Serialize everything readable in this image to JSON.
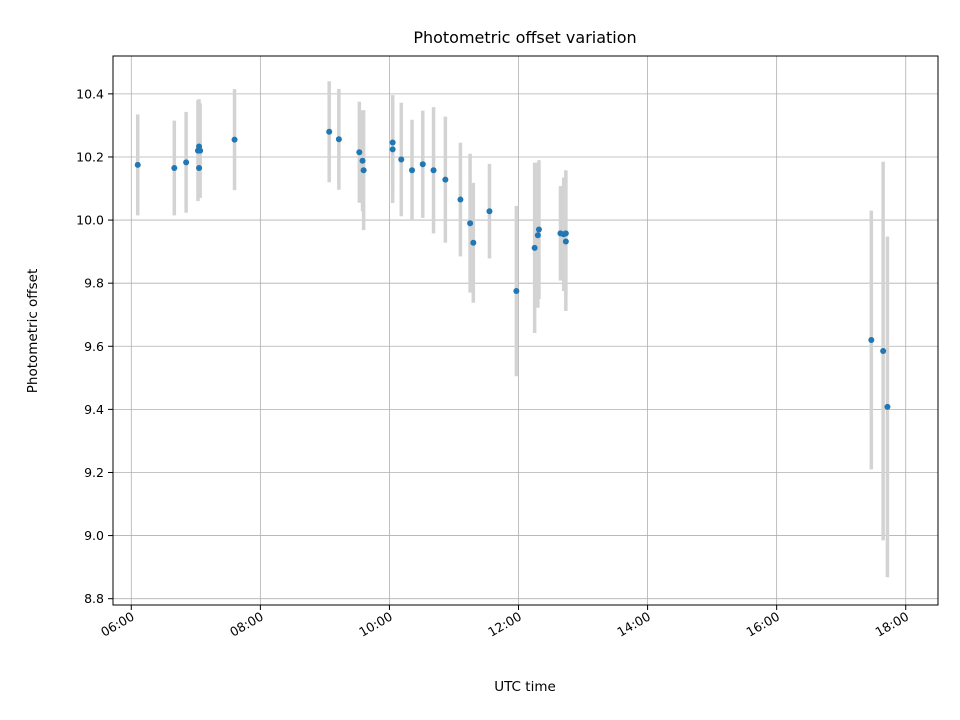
{
  "chart_data": {
    "type": "scatter",
    "title": "Photometric offset variation",
    "xlabel": "UTC time",
    "ylabel": "Photometric offset",
    "x_axis_type": "time-of-day",
    "xlim": [
      "05:43",
      "18:30"
    ],
    "ylim": [
      8.78,
      10.52
    ],
    "x_ticks": [
      "06:00",
      "08:00",
      "10:00",
      "12:00",
      "14:00",
      "16:00",
      "18:00"
    ],
    "y_ticks": [
      "8.8",
      "9.0",
      "9.2",
      "9.4",
      "9.6",
      "9.8",
      "10.0",
      "10.2",
      "10.4"
    ],
    "grid": true,
    "legend": "none",
    "errorbar_color": "#d3d3d3",
    "marker_color": "#1f77b4",
    "series": [
      {
        "points": [
          {
            "t": "06:06",
            "y": 10.175,
            "err": 0.16
          },
          {
            "t": "06:40",
            "y": 10.165,
            "err": 0.15
          },
          {
            "t": "06:51",
            "y": 10.183,
            "err": 0.16
          },
          {
            "t": "07:02",
            "y": 10.22,
            "err": 0.16
          },
          {
            "t": "07:03",
            "y": 10.233,
            "err": 0.15
          },
          {
            "t": "07:03",
            "y": 10.165,
            "err": 0.09
          },
          {
            "t": "07:04",
            "y": 10.22,
            "err": 0.15
          },
          {
            "t": "07:36",
            "y": 10.255,
            "err": 0.16
          },
          {
            "t": "09:04",
            "y": 10.28,
            "err": 0.16
          },
          {
            "t": "09:13",
            "y": 10.256,
            "err": 0.16
          },
          {
            "t": "09:32",
            "y": 10.215,
            "err": 0.16
          },
          {
            "t": "09:35",
            "y": 10.188,
            "err": 0.16
          },
          {
            "t": "09:36",
            "y": 10.158,
            "err": 0.19
          },
          {
            "t": "10:03",
            "y": 10.246,
            "err": 0.15
          },
          {
            "t": "10:03",
            "y": 10.224,
            "err": 0.17
          },
          {
            "t": "10:11",
            "y": 10.192,
            "err": 0.18
          },
          {
            "t": "10:21",
            "y": 10.158,
            "err": 0.16
          },
          {
            "t": "10:31",
            "y": 10.177,
            "err": 0.17
          },
          {
            "t": "10:41",
            "y": 10.158,
            "err": 0.2
          },
          {
            "t": "10:52",
            "y": 10.128,
            "err": 0.2
          },
          {
            "t": "11:06",
            "y": 10.065,
            "err": 0.18
          },
          {
            "t": "11:15",
            "y": 9.99,
            "err": 0.22
          },
          {
            "t": "11:18",
            "y": 9.928,
            "err": 0.19
          },
          {
            "t": "11:33",
            "y": 10.028,
            "err": 0.15
          },
          {
            "t": "11:58",
            "y": 9.775,
            "err": 0.27
          },
          {
            "t": "12:15",
            "y": 9.912,
            "err": 0.27
          },
          {
            "t": "12:18",
            "y": 9.952,
            "err": 0.23
          },
          {
            "t": "12:19",
            "y": 9.97,
            "err": 0.22
          },
          {
            "t": "12:39",
            "y": 9.958,
            "err": 0.15
          },
          {
            "t": "12:42",
            "y": 9.955,
            "err": 0.18
          },
          {
            "t": "12:44",
            "y": 9.932,
            "err": 0.22
          },
          {
            "t": "12:44",
            "y": 9.958,
            "err": 0.2
          },
          {
            "t": "17:28",
            "y": 9.62,
            "err": 0.41
          },
          {
            "t": "17:39",
            "y": 9.585,
            "err": 0.6
          },
          {
            "t": "17:43",
            "y": 9.408,
            "err": 0.54
          }
        ]
      }
    ]
  }
}
